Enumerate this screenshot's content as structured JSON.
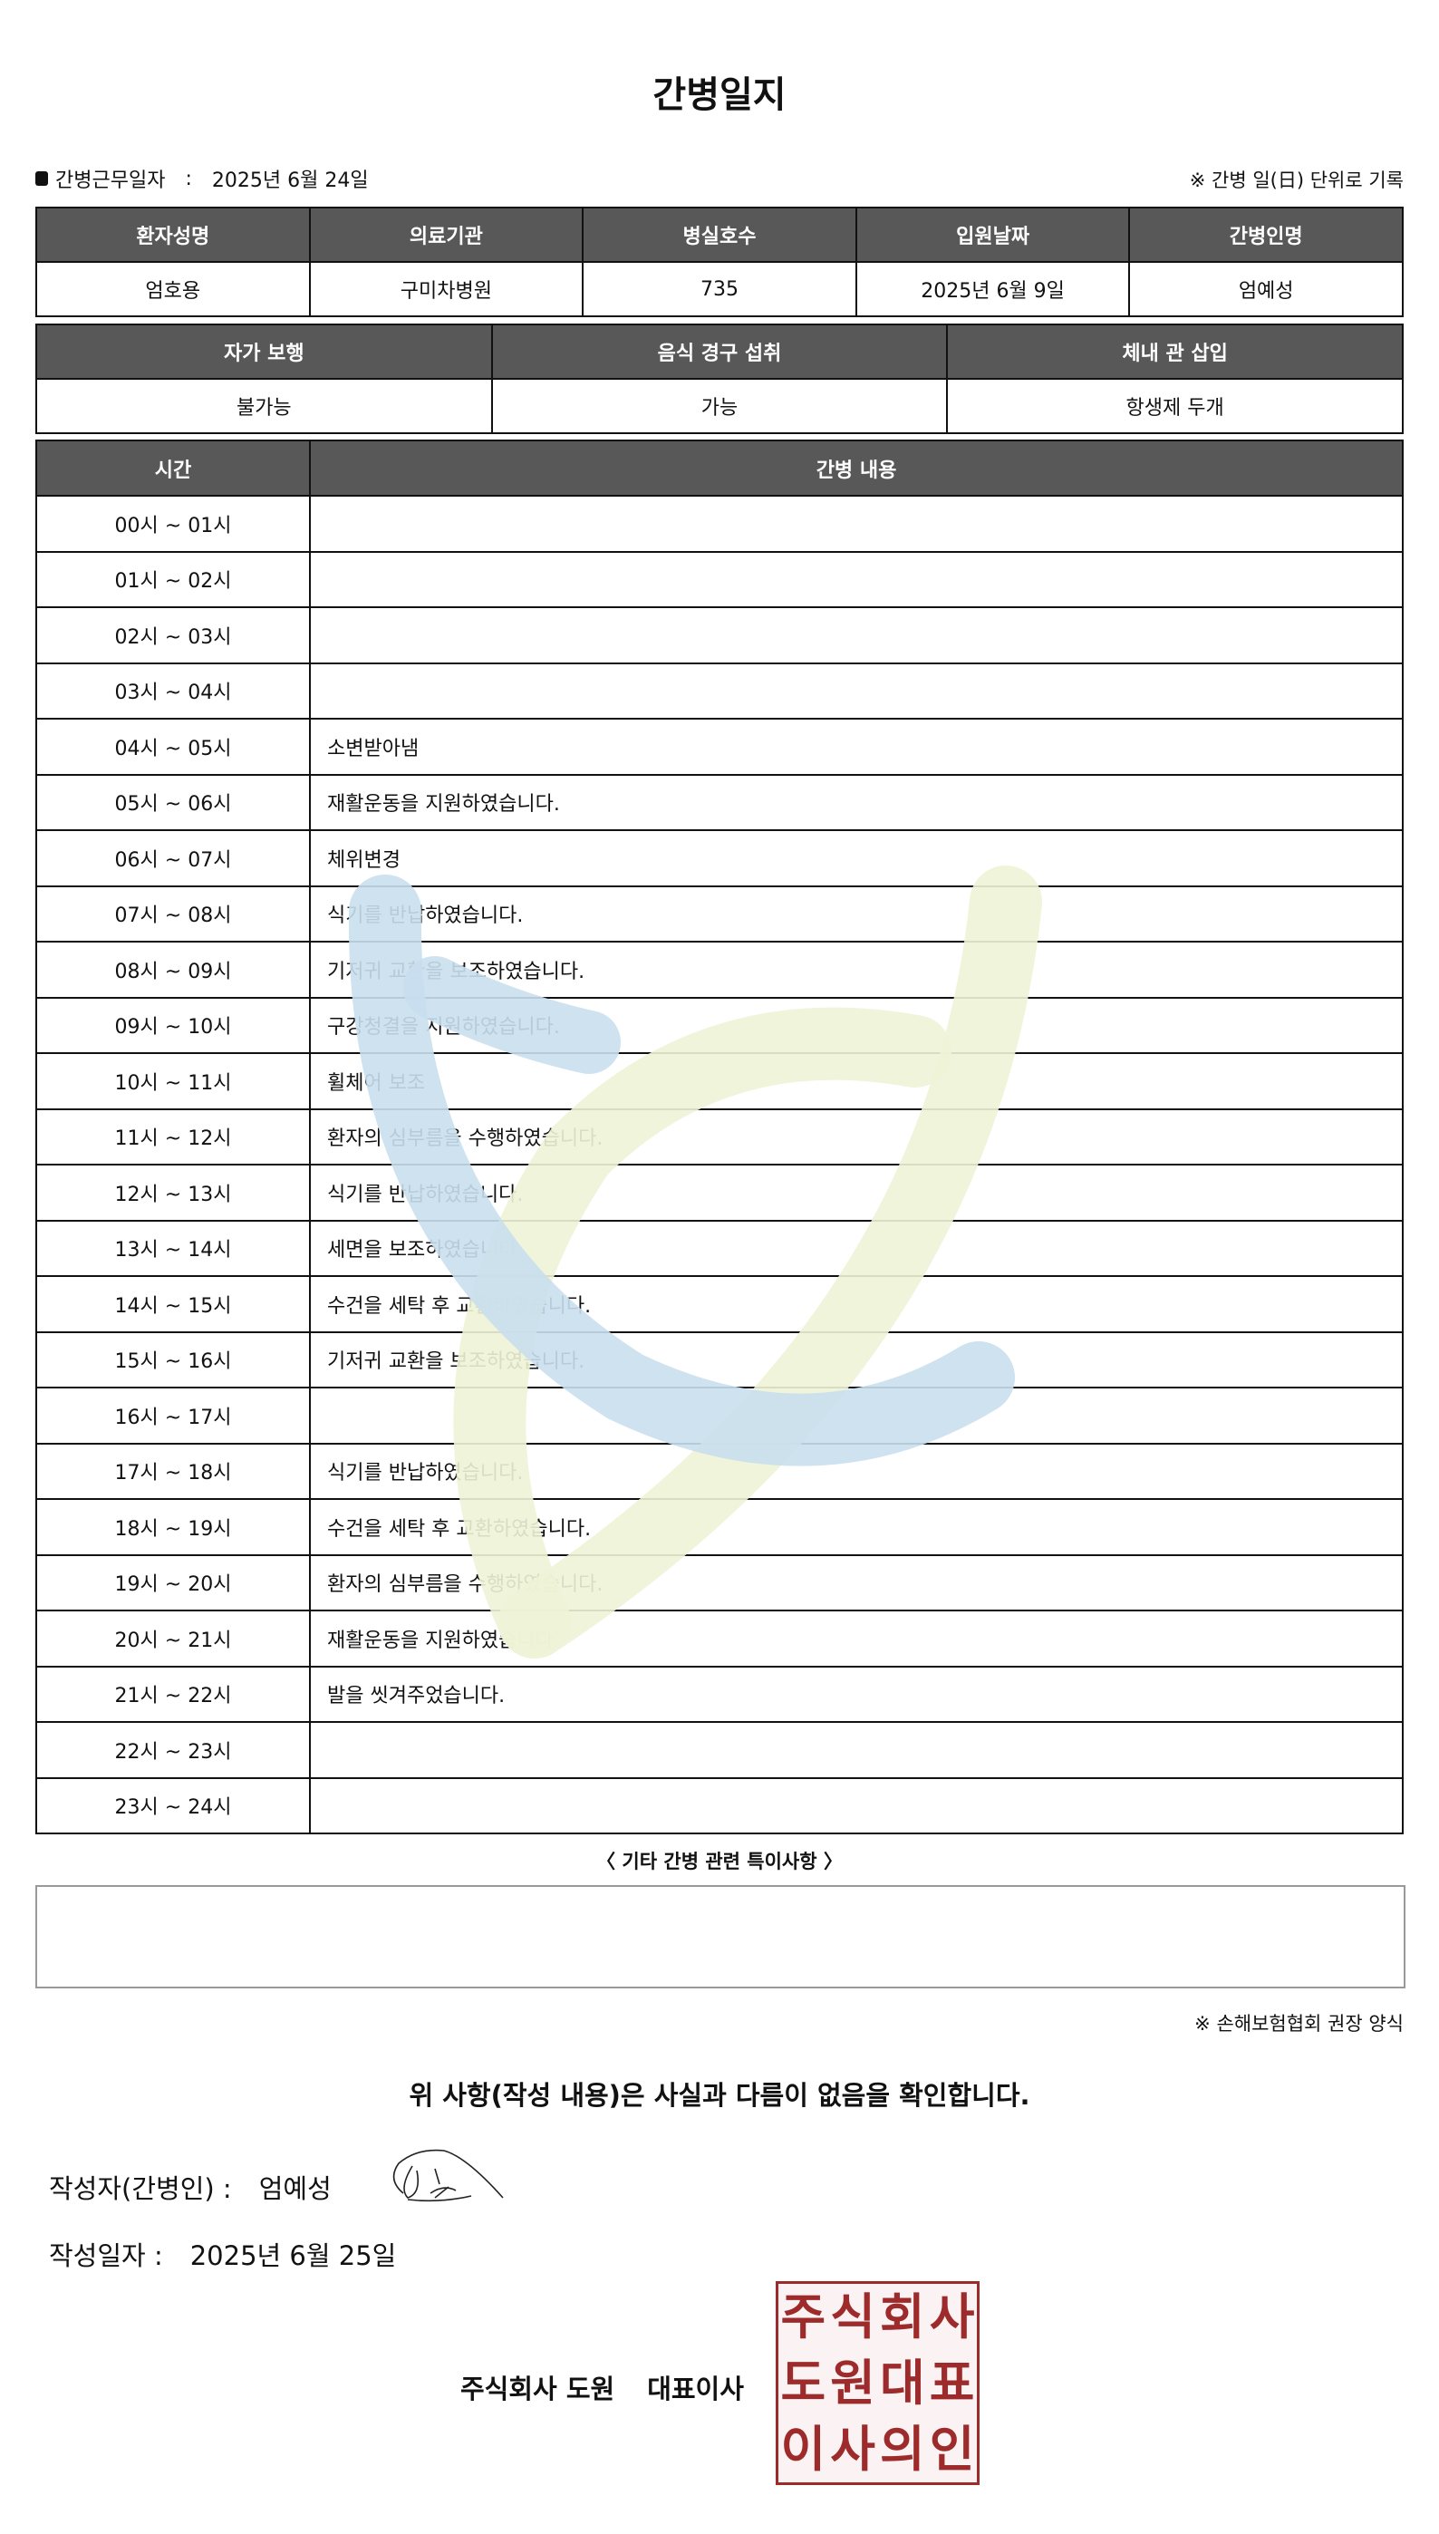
{
  "title": "간병일지",
  "work_date_label": "간병근무일자",
  "work_date_sep": ":",
  "work_date": "2025년 6월 24일",
  "unit_note": "※ 간병 일(日) 단위로 기록",
  "info_table": {
    "headers": [
      "환자성명",
      "의료기관",
      "병실호수",
      "입원날짜",
      "간병인명"
    ],
    "values": [
      "엄호용",
      "구미차병원",
      "735",
      "2025년 6월 9일",
      "엄예성"
    ]
  },
  "status_table": {
    "headers": [
      "자가 보행",
      "음식 경구 섭취",
      "체내 관 삽입"
    ],
    "values": [
      "불가능",
      "가능",
      "항생제 두개"
    ]
  },
  "log_table": {
    "headers": [
      "시간",
      "간병 내용"
    ],
    "rows": [
      {
        "time": "00시 ~ 01시",
        "content": ""
      },
      {
        "time": "01시 ~ 02시",
        "content": ""
      },
      {
        "time": "02시 ~ 03시",
        "content": ""
      },
      {
        "time": "03시 ~ 04시",
        "content": ""
      },
      {
        "time": "04시 ~ 05시",
        "content": "소변받아냄"
      },
      {
        "time": "05시 ~ 06시",
        "content": "재활운동을 지원하였습니다."
      },
      {
        "time": "06시 ~ 07시",
        "content": "체위변경"
      },
      {
        "time": "07시 ~ 08시",
        "content": "식기를 반납하였습니다."
      },
      {
        "time": "08시 ~ 09시",
        "content": "기저귀 교환을 보조하였습니다."
      },
      {
        "time": "09시 ~ 10시",
        "content": "구강청결을 지원하였습니다."
      },
      {
        "time": "10시 ~ 11시",
        "content": "휠체어 보조"
      },
      {
        "time": "11시 ~ 12시",
        "content": "환자의 심부름을 수행하였습니다."
      },
      {
        "time": "12시 ~ 13시",
        "content": "식기를 반납하였습니다."
      },
      {
        "time": "13시 ~ 14시",
        "content": "세면을 보조하였습니다."
      },
      {
        "time": "14시 ~ 15시",
        "content": "수건을 세탁 후 교환하였습니다."
      },
      {
        "time": "15시 ~ 16시",
        "content": "기저귀 교환을 보조하였습니다."
      },
      {
        "time": "16시 ~ 17시",
        "content": ""
      },
      {
        "time": "17시 ~ 18시",
        "content": "식기를 반납하였습니다."
      },
      {
        "time": "18시 ~ 19시",
        "content": "수건을 세탁 후 교환하였습니다."
      },
      {
        "time": "19시 ~ 20시",
        "content": "환자의 심부름을 수행하였습니다."
      },
      {
        "time": "20시 ~ 21시",
        "content": "재활운동을 지원하였습니다."
      },
      {
        "time": "21시 ~ 22시",
        "content": "발을 씻겨주었습니다."
      },
      {
        "time": "22시 ~ 23시",
        "content": ""
      },
      {
        "time": "23시 ~ 24시",
        "content": ""
      }
    ]
  },
  "notes_title": "〈 기타 간병 관련 특이사항 〉",
  "notes": "",
  "form_note": "※ 손해보험협회 권장 양식",
  "confirm_statement": "위 사항(작성 내용)은 사실과 다름이 없음을 확인합니다.",
  "writer_label": "작성자(간병인) :",
  "writer_name": "엄예성",
  "written_date_label": "작성일자 :",
  "written_date": "2025년 6월 25일",
  "company_name": "주식회사 도원",
  "company_title": "대표이사",
  "seal_text": [
    "주",
    "식",
    "회",
    "사",
    "도",
    "원",
    "대",
    "표",
    "이",
    "사",
    "의",
    "인"
  ],
  "colors": {
    "header_bg": "#585858",
    "seal": "#9e2b2b",
    "watermark_blue": "#c9dfee",
    "watermark_yellow": "#eef3d6"
  }
}
